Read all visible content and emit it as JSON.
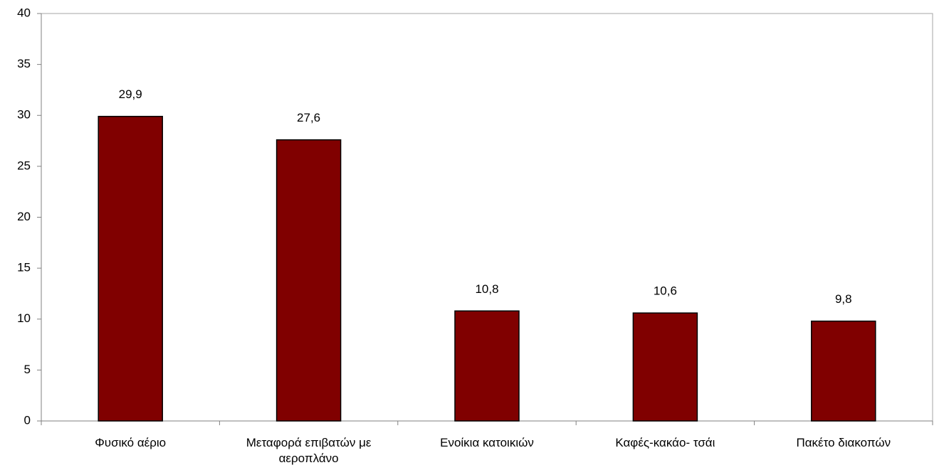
{
  "chart_data": {
    "type": "bar",
    "categories": [
      "Φυσικό αέριο",
      "Μεταφορά επιβατών με αεροπλάνο",
      "Ενοίκια κατοικιών",
      "Καφές-κακάο- τσάι",
      "Πακέτο διακοπών"
    ],
    "values": [
      29.9,
      27.6,
      10.8,
      10.6,
      9.8
    ],
    "value_labels": [
      "29,9",
      "27,6",
      "10,8",
      "10,6",
      "9,8"
    ],
    "color": "#800000",
    "ylim": [
      0,
      40
    ],
    "yticks": [
      0,
      5,
      10,
      15,
      20,
      25,
      30,
      35,
      40
    ],
    "grid": false
  }
}
